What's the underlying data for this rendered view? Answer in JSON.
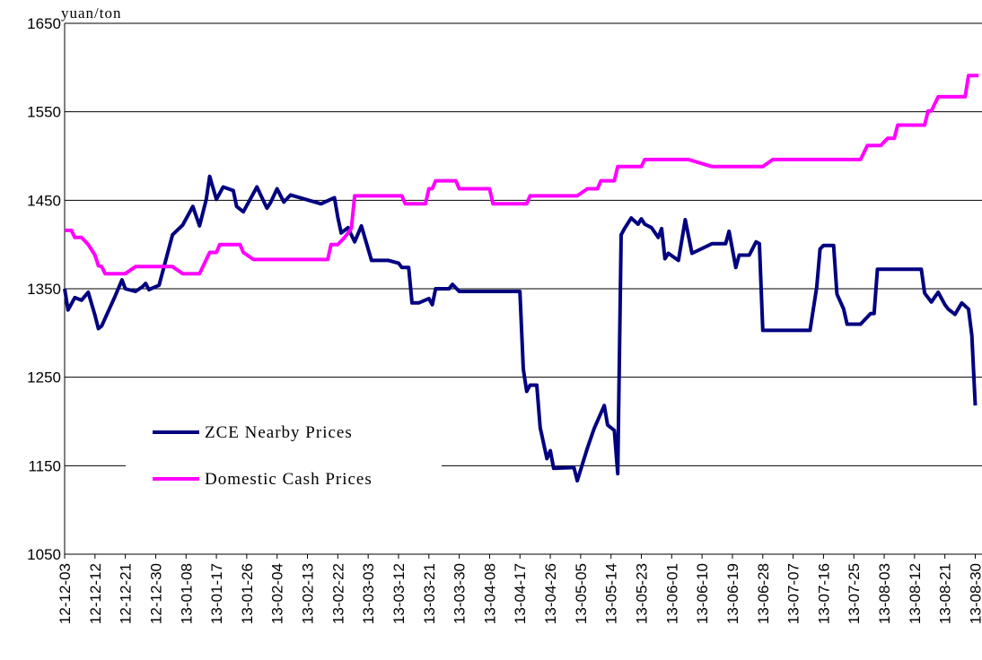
{
  "chart_data": {
    "type": "line",
    "y_label": "yuan/ton",
    "xlim": [
      "12-12-03",
      "13-09-01"
    ],
    "xticks": [
      "12-12-03",
      "12-12-12",
      "12-12-21",
      "12-12-30",
      "13-01-08",
      "13-01-17",
      "13-01-26",
      "13-02-04",
      "13-02-13",
      "13-02-22",
      "13-03-03",
      "13-03-12",
      "13-03-21",
      "13-03-30",
      "13-04-08",
      "13-04-17",
      "13-04-26",
      "13-05-05",
      "13-05-14",
      "13-05-23",
      "13-06-01",
      "13-06-10",
      "13-06-19",
      "13-06-28",
      "13-07-07",
      "13-07-16",
      "13-07-25",
      "13-08-03",
      "13-08-12",
      "13-08-21",
      "13-08-30"
    ],
    "ylim": [
      1050,
      1650
    ],
    "yticks": [
      1050,
      1150,
      1250,
      1350,
      1450,
      1550,
      1650
    ],
    "grid": true,
    "legend": "lower left",
    "series": [
      {
        "name": "ZCE Nearby Prices",
        "color": "#000080",
        "x": [
          "12-12-03",
          "12-12-04",
          "12-12-06",
          "12-12-08",
          "12-12-10",
          "12-12-12",
          "12-12-13",
          "12-12-14",
          "12-12-18",
          "12-12-20",
          "12-12-21",
          "12-12-24",
          "12-12-26",
          "12-12-27",
          "12-12-28",
          "12-12-31",
          "13-01-04",
          "13-01-07",
          "13-01-10",
          "13-01-12",
          "13-01-14",
          "13-01-15",
          "13-01-17",
          "13-01-19",
          "13-01-22",
          "13-01-23",
          "13-01-25",
          "13-01-29",
          "13-02-01",
          "13-02-02",
          "13-02-04",
          "13-02-06",
          "13-02-08",
          "13-02-17",
          "13-02-21",
          "13-02-22",
          "13-02-23",
          "13-02-25",
          "13-02-27",
          "13-03-01",
          "13-03-04",
          "13-03-09",
          "13-03-12",
          "13-03-13",
          "13-03-15",
          "13-03-16",
          "13-03-18",
          "13-03-21",
          "13-03-22",
          "13-03-23",
          "13-03-27",
          "13-03-28",
          "13-03-30",
          "13-04-17",
          "13-04-18",
          "13-04-19",
          "13-04-20",
          "13-04-22",
          "13-04-23",
          "13-04-25",
          "13-04-26",
          "13-04-27",
          "13-05-03",
          "13-05-04",
          "13-05-07",
          "13-05-09",
          "13-05-12",
          "13-05-13",
          "13-05-15",
          "13-05-16",
          "13-05-17",
          "13-05-18",
          "13-05-20",
          "13-05-22",
          "13-05-23",
          "13-05-24",
          "13-05-26",
          "13-05-28",
          "13-05-29",
          "13-05-30",
          "13-05-31",
          "13-06-03",
          "13-06-05",
          "13-06-07",
          "13-06-13",
          "13-06-17",
          "13-06-18",
          "13-06-20",
          "13-06-21",
          "13-06-24",
          "13-06-26",
          "13-06-27",
          "13-06-28",
          "13-07-12",
          "13-07-14",
          "13-07-15",
          "13-07-16",
          "13-07-19",
          "13-07-20",
          "13-07-22",
          "13-07-23",
          "13-07-27",
          "13-07-30",
          "13-07-31",
          "13-08-01",
          "13-08-14",
          "13-08-15",
          "13-08-17",
          "13-08-19",
          "13-08-21",
          "13-08-22",
          "13-08-24",
          "13-08-26",
          "13-08-28",
          "13-08-29",
          "13-08-30"
        ],
        "values": [
          1350,
          1326,
          1340,
          1337,
          1346,
          1320,
          1305,
          1308,
          1342,
          1360,
          1350,
          1347,
          1352,
          1356,
          1349,
          1354,
          1411,
          1422,
          1443,
          1421,
          1451,
          1477,
          1451,
          1465,
          1461,
          1443,
          1437,
          1465,
          1441,
          1447,
          1463,
          1448,
          1456,
          1446,
          1453,
          1431,
          1413,
          1419,
          1403,
          1421,
          1382,
          1382,
          1379,
          1374,
          1374,
          1334,
          1334,
          1339,
          1332,
          1350,
          1350,
          1355,
          1347,
          1347,
          1259,
          1234,
          1241,
          1241,
          1193,
          1158,
          1167,
          1147,
          1148,
          1133,
          1170,
          1192,
          1218,
          1196,
          1190,
          1141,
          1411,
          1418,
          1430,
          1423,
          1429,
          1423,
          1419,
          1408,
          1418,
          1384,
          1390,
          1382,
          1428,
          1390,
          1401,
          1401,
          1415,
          1374,
          1388,
          1388,
          1403,
          1401,
          1303,
          1303,
          1352,
          1395,
          1399,
          1399,
          1344,
          1327,
          1310,
          1310,
          1322,
          1322,
          1372,
          1372,
          1345,
          1335,
          1346,
          1332,
          1327,
          1321,
          1334,
          1327,
          1297,
          1218
        ]
      },
      {
        "name": "Domestic Cash Prices",
        "color": "#ff00ff",
        "x": [
          "12-12-03",
          "12-12-05",
          "12-12-06",
          "12-12-08",
          "12-12-10",
          "12-12-12",
          "12-12-13",
          "12-12-14",
          "12-12-15",
          "12-12-21",
          "12-12-24",
          "13-01-04",
          "13-01-07",
          "13-01-12",
          "13-01-15",
          "13-01-17",
          "13-01-18",
          "13-01-24",
          "13-01-25",
          "13-01-28",
          "13-02-19",
          "13-02-20",
          "13-02-22",
          "13-02-24",
          "13-02-26",
          "13-02-27",
          "13-03-13",
          "13-03-14",
          "13-03-20",
          "13-03-21",
          "13-03-22",
          "13-03-23",
          "13-03-29",
          "13-03-30",
          "13-04-08",
          "13-04-09",
          "13-04-19",
          "13-04-20",
          "13-05-04",
          "13-05-07",
          "13-05-10",
          "13-05-11",
          "13-05-15",
          "13-05-16",
          "13-05-23",
          "13-05-24",
          "13-06-06",
          "13-06-13",
          "13-06-28",
          "13-07-01",
          "13-07-27",
          "13-07-29",
          "13-08-02",
          "13-08-04",
          "13-08-06",
          "13-08-07",
          "13-08-15",
          "13-08-16",
          "13-08-17",
          "13-08-19",
          "13-08-27",
          "13-08-28",
          "13-08-31"
        ],
        "values": [
          1416,
          1416,
          1408,
          1408,
          1400,
          1388,
          1376,
          1375,
          1367,
          1367,
          1375,
          1375,
          1367,
          1367,
          1391,
          1391,
          1400,
          1400,
          1391,
          1383,
          1383,
          1400,
          1400,
          1408,
          1418,
          1455,
          1455,
          1446,
          1446,
          1463,
          1463,
          1472,
          1472,
          1463,
          1463,
          1446,
          1446,
          1455,
          1455,
          1463,
          1463,
          1472,
          1472,
          1488,
          1488,
          1496,
          1496,
          1488,
          1488,
          1496,
          1496,
          1512,
          1512,
          1520,
          1520,
          1535,
          1535,
          1551,
          1551,
          1567,
          1567,
          1591,
          1591
        ]
      }
    ]
  }
}
